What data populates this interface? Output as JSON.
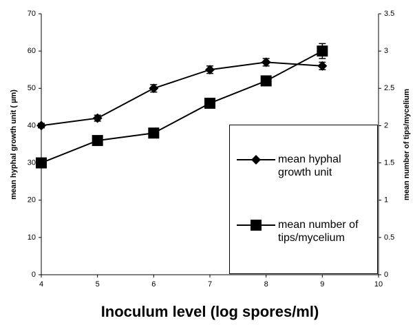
{
  "chart_data": {
    "type": "line",
    "x_label": "Inoculum level (log spores/ml)",
    "y_label": "mean hyphal growth unit ( µm)",
    "y2_label": "mean number of tips/mycelium",
    "x": [
      4,
      5,
      6,
      7,
      8,
      9
    ],
    "xlim": [
      4,
      10
    ],
    "xticks": [
      4,
      5,
      6,
      7,
      8,
      9,
      10
    ],
    "ylim": [
      0,
      70
    ],
    "yticks": [
      0,
      10,
      20,
      30,
      40,
      50,
      60,
      70
    ],
    "y2lim": [
      0,
      3.5
    ],
    "y2ticks": [
      0,
      0.5,
      1,
      1.5,
      2,
      2.5,
      3,
      3.5
    ],
    "series": [
      {
        "name": "mean hyphal growth unit",
        "color": "#000000",
        "marker": "diamond",
        "values": [
          40,
          42,
          50,
          55,
          57,
          56
        ],
        "errors": [
          0.6,
          0.8,
          1,
          1,
          1,
          1
        ]
      },
      {
        "name": "mean number of tips/mycelium",
        "color": "#000000",
        "marker": "square",
        "axis": "y2",
        "values": [
          1.5,
          1.8,
          1.9,
          2.3,
          2.6,
          3.0
        ],
        "errors": [
          0.03,
          0.03,
          0.03,
          0.04,
          0.05,
          0.1
        ]
      }
    ]
  }
}
